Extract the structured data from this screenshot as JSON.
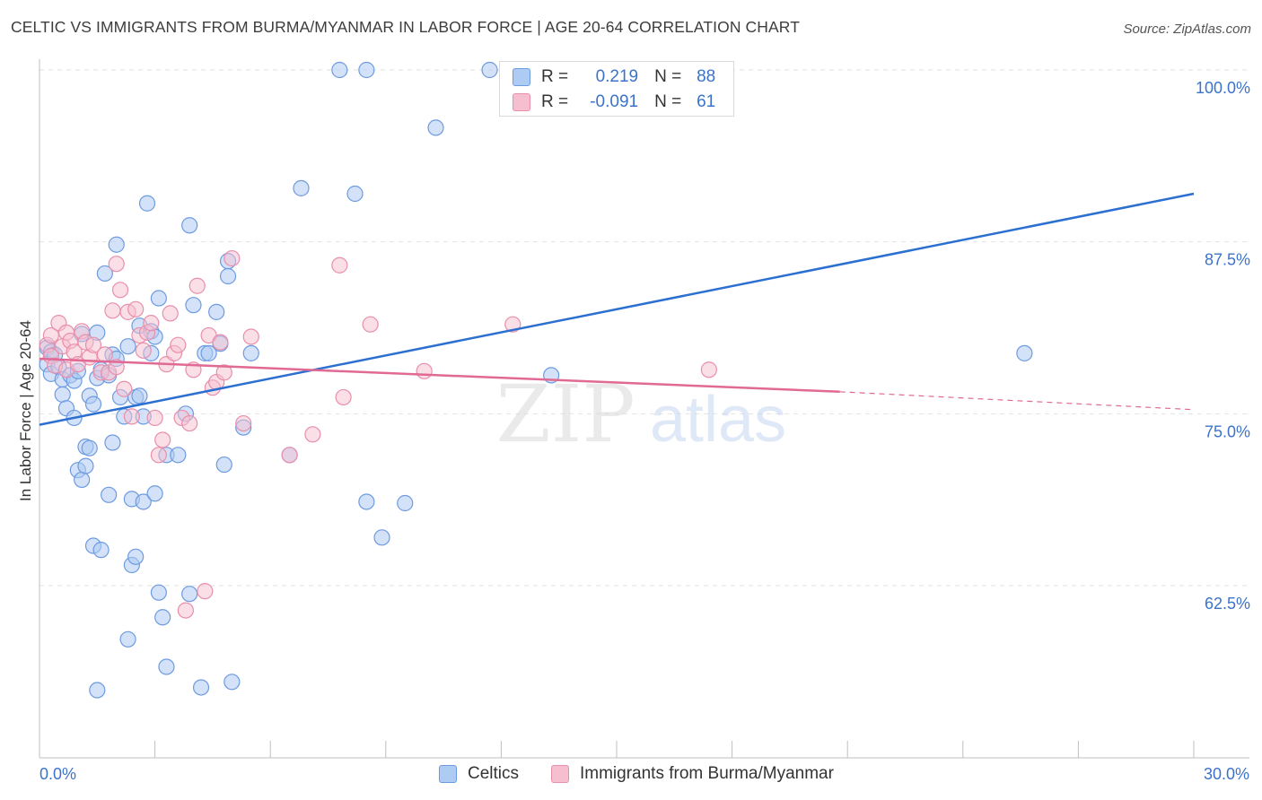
{
  "title": "CELTIC VS IMMIGRANTS FROM BURMA/MYANMAR IN LABOR FORCE | AGE 20-64 CORRELATION CHART",
  "source": "Source: ZipAtlas.com",
  "watermark": {
    "zip": "ZIP",
    "atlas": "atlas"
  },
  "colors": {
    "celtics_fill": "#aecbf3",
    "celtics_stroke": "#6d9be0",
    "celtics_line": "#2b6fd1",
    "burma_fill": "#f6bfd0",
    "burma_stroke": "#e88fac",
    "burma_line": "#e06a93",
    "tick_text": "#3b73c9",
    "grid": "#e2e2e2"
  },
  "stats": {
    "r_label": "R =",
    "n_label": "N =",
    "rows": [
      {
        "series": "Celtics",
        "r": "0.219",
        "n": "88"
      },
      {
        "series": "Immigrants from Burma/Myanmar",
        "r": "-0.091",
        "n": "61"
      }
    ]
  },
  "legend": {
    "items": [
      "Celtics",
      "Immigrants from Burma/Myanmar"
    ]
  },
  "chart_data": {
    "type": "scatter",
    "title": "CELTIC VS IMMIGRANTS FROM BURMA/MYANMAR IN LABOR FORCE | AGE 20-64 CORRELATION CHART",
    "xlabel": "",
    "ylabel": "In Labor Force | Age 20-64",
    "xlim": [
      0,
      30
    ],
    "ylim": [
      50.5,
      101.5
    ],
    "x_tick_labels": [
      "0.0%",
      "30.0%"
    ],
    "y_ticks": [
      62.5,
      75.0,
      87.5,
      100.0
    ],
    "y_tick_labels": [
      "62.5%",
      "75.0%",
      "87.5%",
      "100.0%"
    ],
    "grid": true,
    "legend_position": "bottom",
    "series": [
      {
        "name": "Celtics",
        "trend": {
          "x": [
            0,
            30
          ],
          "y": [
            74.2,
            91.0
          ]
        },
        "points": [
          [
            0.2,
            79.8
          ],
          [
            0.3,
            79.5
          ],
          [
            0.2,
            78.6
          ],
          [
            0.4,
            79.3
          ],
          [
            0.3,
            77.9
          ],
          [
            0.5,
            78.4
          ],
          [
            0.6,
            77.5
          ],
          [
            0.6,
            76.4
          ],
          [
            0.7,
            75.4
          ],
          [
            0.8,
            77.8
          ],
          [
            0.9,
            74.7
          ],
          [
            0.9,
            77.4
          ],
          [
            1.0,
            78.1
          ],
          [
            1.1,
            80.8
          ],
          [
            1.0,
            70.9
          ],
          [
            1.1,
            70.2
          ],
          [
            1.2,
            71.2
          ],
          [
            1.2,
            72.6
          ],
          [
            1.3,
            72.5
          ],
          [
            1.3,
            76.3
          ],
          [
            1.4,
            75.7
          ],
          [
            1.4,
            65.4
          ],
          [
            1.5,
            77.6
          ],
          [
            1.5,
            80.9
          ],
          [
            1.5,
            54.9
          ],
          [
            1.6,
            65.1
          ],
          [
            1.6,
            78.2
          ],
          [
            1.7,
            85.2
          ],
          [
            1.8,
            77.8
          ],
          [
            1.8,
            69.1
          ],
          [
            1.9,
            79.3
          ],
          [
            1.9,
            72.9
          ],
          [
            2.0,
            87.3
          ],
          [
            2.0,
            79.0
          ],
          [
            2.1,
            76.2
          ],
          [
            2.2,
            74.8
          ],
          [
            2.3,
            79.9
          ],
          [
            2.3,
            58.6
          ],
          [
            2.4,
            68.8
          ],
          [
            2.4,
            64.0
          ],
          [
            2.5,
            76.2
          ],
          [
            2.5,
            64.6
          ],
          [
            2.6,
            76.3
          ],
          [
            2.6,
            81.4
          ],
          [
            2.7,
            74.8
          ],
          [
            2.7,
            68.6
          ],
          [
            2.8,
            90.3
          ],
          [
            2.9,
            81.0
          ],
          [
            2.9,
            79.4
          ],
          [
            3.0,
            80.6
          ],
          [
            3.0,
            69.2
          ],
          [
            3.1,
            83.4
          ],
          [
            3.1,
            62.0
          ],
          [
            3.2,
            60.2
          ],
          [
            3.3,
            72.0
          ],
          [
            3.3,
            56.6
          ],
          [
            3.6,
            72.0
          ],
          [
            3.8,
            75.0
          ],
          [
            3.9,
            61.9
          ],
          [
            3.9,
            88.7
          ],
          [
            4.0,
            82.9
          ],
          [
            4.2,
            55.1
          ],
          [
            4.3,
            79.4
          ],
          [
            4.4,
            79.4
          ],
          [
            4.6,
            82.4
          ],
          [
            4.7,
            80.1
          ],
          [
            4.8,
            71.3
          ],
          [
            4.9,
            86.1
          ],
          [
            4.9,
            85.0
          ],
          [
            5.0,
            55.5
          ],
          [
            5.3,
            74.0
          ],
          [
            5.5,
            79.4
          ],
          [
            6.5,
            72.0
          ],
          [
            6.8,
            91.4
          ],
          [
            7.8,
            100.0
          ],
          [
            8.2,
            91.0
          ],
          [
            8.5,
            100.0
          ],
          [
            8.5,
            68.6
          ],
          [
            8.9,
            66.0
          ],
          [
            9.5,
            68.5
          ],
          [
            10.3,
            95.8
          ],
          [
            11.7,
            100.0
          ],
          [
            13.3,
            77.8
          ],
          [
            25.6,
            79.4
          ]
        ]
      },
      {
        "name": "Immigrants from Burma/Myanmar",
        "trend": {
          "x": [
            0,
            20.8
          ],
          "y": [
            79.0,
            76.6
          ]
        },
        "trend_extension": {
          "x": [
            20.8,
            30
          ],
          "y": [
            76.6,
            75.3
          ]
        },
        "points": [
          [
            0.2,
            80.0
          ],
          [
            0.3,
            79.2
          ],
          [
            0.3,
            80.7
          ],
          [
            0.4,
            78.5
          ],
          [
            0.5,
            81.6
          ],
          [
            0.6,
            79.9
          ],
          [
            0.7,
            78.2
          ],
          [
            0.7,
            80.9
          ],
          [
            0.8,
            80.3
          ],
          [
            0.9,
            79.5
          ],
          [
            1.0,
            78.6
          ],
          [
            1.1,
            81.0
          ],
          [
            1.2,
            80.2
          ],
          [
            1.3,
            79.1
          ],
          [
            1.4,
            80.0
          ],
          [
            1.6,
            78.0
          ],
          [
            1.7,
            79.3
          ],
          [
            1.8,
            78.0
          ],
          [
            1.9,
            82.5
          ],
          [
            2.0,
            78.4
          ],
          [
            2.0,
            85.9
          ],
          [
            2.1,
            84.0
          ],
          [
            2.2,
            76.8
          ],
          [
            2.3,
            82.4
          ],
          [
            2.4,
            74.8
          ],
          [
            2.5,
            82.6
          ],
          [
            2.6,
            80.7
          ],
          [
            2.7,
            79.6
          ],
          [
            2.8,
            80.9
          ],
          [
            2.9,
            81.6
          ],
          [
            3.0,
            74.7
          ],
          [
            3.1,
            72.0
          ],
          [
            3.2,
            73.1
          ],
          [
            3.3,
            78.6
          ],
          [
            3.4,
            82.3
          ],
          [
            3.5,
            79.4
          ],
          [
            3.6,
            80.0
          ],
          [
            3.7,
            74.7
          ],
          [
            3.8,
            60.7
          ],
          [
            3.9,
            74.3
          ],
          [
            4.0,
            78.2
          ],
          [
            4.1,
            84.3
          ],
          [
            4.3,
            62.1
          ],
          [
            4.4,
            80.7
          ],
          [
            4.5,
            76.9
          ],
          [
            4.6,
            77.3
          ],
          [
            4.7,
            80.2
          ],
          [
            4.8,
            78.0
          ],
          [
            5.0,
            86.3
          ],
          [
            5.3,
            74.3
          ],
          [
            5.5,
            80.6
          ],
          [
            6.5,
            72.0
          ],
          [
            7.1,
            73.5
          ],
          [
            7.8,
            85.8
          ],
          [
            7.9,
            76.2
          ],
          [
            8.6,
            81.5
          ],
          [
            10.0,
            78.1
          ],
          [
            12.3,
            81.5
          ],
          [
            17.4,
            78.2
          ]
        ]
      }
    ]
  }
}
